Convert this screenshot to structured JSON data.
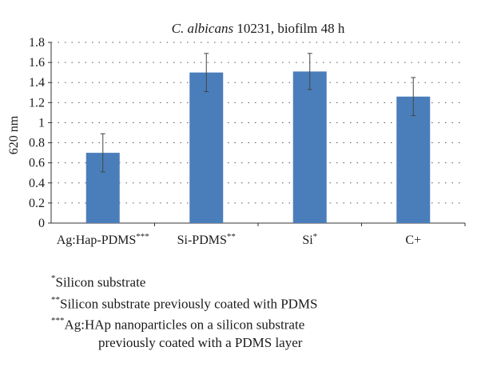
{
  "chart_data": {
    "type": "bar",
    "title_italic": "C. albicans",
    "title_rest": " 10231, biofilm 48 h",
    "ylabel": "620 nm",
    "xlabel": "",
    "ylim": [
      0,
      1.8
    ],
    "yticks": [
      "0",
      "0.2",
      "0.4",
      "0.6",
      "0.8",
      "1",
      "1.2",
      "1.4",
      "1.6",
      "1.8"
    ],
    "ytick_values": [
      0,
      0.2,
      0.4,
      0.6,
      0.8,
      1.0,
      1.2,
      1.4,
      1.6,
      1.8
    ],
    "grid": true,
    "bar_color": "#4a7ebb",
    "categories": [
      {
        "label": "Ag:Hap-PDMS",
        "sup": "***"
      },
      {
        "label": "Si-PDMS",
        "sup": "**"
      },
      {
        "label": "Si",
        "sup": "*"
      },
      {
        "label": "C+",
        "sup": ""
      }
    ],
    "values": [
      0.7,
      1.5,
      1.51,
      1.26
    ],
    "errors": [
      0.19,
      0.19,
      0.18,
      0.19
    ]
  },
  "footnotes": [
    {
      "mark": "*",
      "text": "Silicon substrate"
    },
    {
      "mark": "**",
      "text": "Silicon substrate previously coated with PDMS"
    },
    {
      "mark": "***",
      "text": "Ag:HAp nanoparticles on a silicon substrate"
    },
    {
      "mark": "",
      "text": "previously coated with a PDMS layer"
    }
  ]
}
